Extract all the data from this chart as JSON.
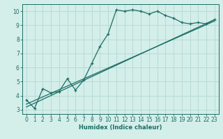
{
  "xlabel": "Humidex (Indice chaleur)",
  "bg_color": "#d4eeea",
  "grid_color": "#b8dad6",
  "line_color": "#1a6e64",
  "xlim": [
    -0.5,
    23.5
  ],
  "ylim": [
    2.7,
    10.5
  ],
  "xticks": [
    0,
    1,
    2,
    3,
    4,
    5,
    6,
    7,
    8,
    9,
    10,
    11,
    12,
    13,
    14,
    15,
    16,
    17,
    18,
    19,
    20,
    21,
    22,
    23
  ],
  "yticks": [
    3,
    4,
    5,
    6,
    7,
    8,
    9,
    10
  ],
  "line1_x": [
    0,
    1,
    2,
    3,
    4,
    5,
    6,
    7,
    8,
    9,
    10,
    11,
    12,
    13,
    14,
    15,
    16,
    17,
    18,
    19,
    20,
    21,
    22,
    23
  ],
  "line1_y": [
    3.7,
    3.1,
    4.5,
    4.2,
    4.3,
    5.2,
    4.4,
    5.1,
    6.3,
    7.5,
    8.4,
    10.1,
    10.0,
    10.1,
    10.0,
    9.8,
    10.0,
    9.7,
    9.5,
    9.2,
    9.1,
    9.2,
    9.1,
    9.4
  ],
  "line2_x": [
    0,
    23
  ],
  "line2_y": [
    3.4,
    9.3
  ],
  "line3_x": [
    0,
    23
  ],
  "line3_y": [
    3.2,
    9.4
  ]
}
